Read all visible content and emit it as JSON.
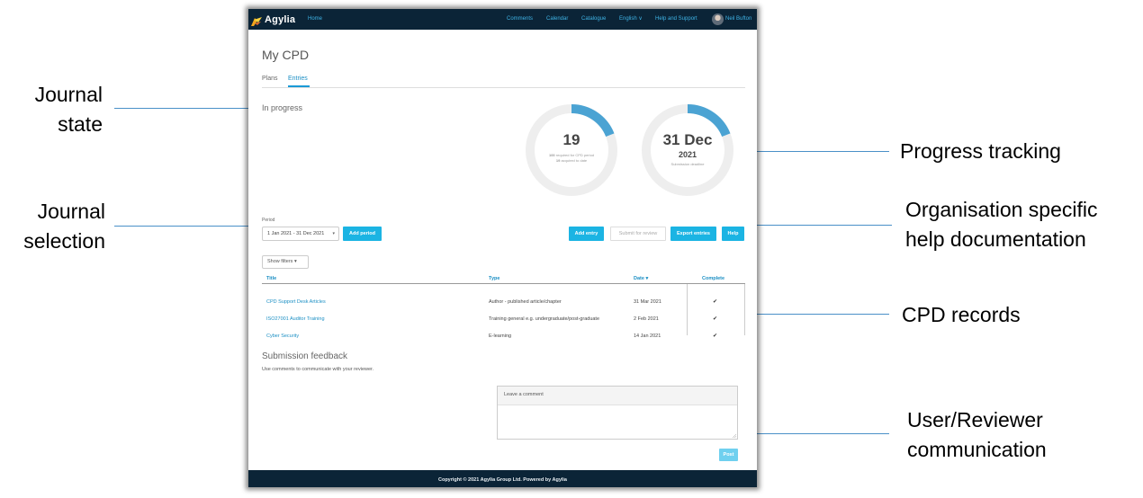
{
  "callouts": {
    "journal_state": [
      "Journal",
      "state"
    ],
    "journal_selection": [
      "Journal",
      "selection"
    ],
    "progress_tracking": "Progress tracking",
    "help_docs": [
      "Organisation specific",
      "help documentation"
    ],
    "cpd_records": "CPD records",
    "communication": [
      "User/Reviewer",
      "communication"
    ]
  },
  "topbar": {
    "logo_text": "Agylia",
    "home": "Home",
    "nav": [
      "Comments",
      "Calendar",
      "Catalogue",
      "English ∨",
      "Help and Support"
    ],
    "user_name": "Neil Bufton",
    "accent_color": "#3fb4e6"
  },
  "page": {
    "title": "My CPD",
    "tabs": [
      {
        "label": "Plans",
        "active": false
      },
      {
        "label": "Entries",
        "active": true
      }
    ],
    "state": "In progress"
  },
  "progress": {
    "hours": {
      "value": "19",
      "required_num": "100",
      "required_text": "required for CPD period",
      "acquired_num": "19",
      "acquired_text": "acquired to date",
      "fraction": 0.19
    },
    "deadline": {
      "day_month": "31 Dec",
      "year": "2021",
      "caption": "Submission deadline",
      "fraction": 0.19
    }
  },
  "period": {
    "label": "Period",
    "selected": "1 Jan 2021 - 31 Dec 2021",
    "add_period": "Add period"
  },
  "actions": {
    "add_entry": "Add entry",
    "submit": "Submit for review",
    "export": "Export entries",
    "help": "Help"
  },
  "filters": {
    "label": "Show filters ▾"
  },
  "table": {
    "columns": [
      "Title",
      "Type",
      "Date ▾",
      "Complete"
    ],
    "rows": [
      {
        "title": "CPD Support Desk Articles",
        "type": "Author - published article/chapter",
        "date": "31 Mar 2021",
        "complete": "✔"
      },
      {
        "title": "ISO27001 Auditor Training",
        "type": "Training general e.g. undergraduate/post-graduate",
        "date": "2 Feb 2021",
        "complete": "✔"
      },
      {
        "title": "Cyber Security",
        "type": "E-learning",
        "date": "14 Jan 2021",
        "complete": "✔"
      }
    ]
  },
  "feedback": {
    "title": "Submission feedback",
    "subtitle": "Use comments to communicate with your reviewer.",
    "comment_placeholder": "Leave a comment",
    "post": "Post"
  },
  "footer": {
    "text": "Copyright © 2021 Agylia Group Ltd. Powered by Agylia"
  }
}
